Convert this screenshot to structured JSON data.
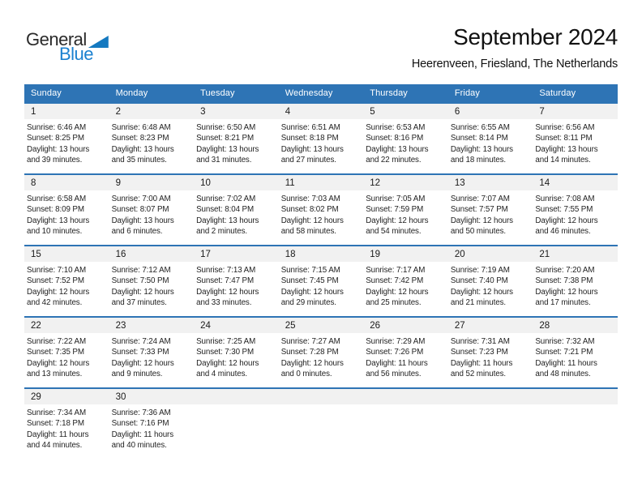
{
  "logo": {
    "part1": "General",
    "part2": "Blue"
  },
  "header": {
    "title": "September 2024",
    "subtitle": "Heerenveen, Friesland, The Netherlands"
  },
  "colors": {
    "accent_blue": "#2e74b5",
    "band_gray": "#f1f1f1",
    "logo_blue": "#1b81d0",
    "logo_triangle_blue": "#1479c0",
    "header_text": "#ffffff"
  },
  "calendar": {
    "weekdays": [
      "Sunday",
      "Monday",
      "Tuesday",
      "Wednesday",
      "Thursday",
      "Friday",
      "Saturday"
    ],
    "weeks": [
      [
        {
          "day": "1",
          "sunrise": "Sunrise: 6:46 AM",
          "sunset": "Sunset: 8:25 PM",
          "daylight_line1": "Daylight: 13 hours",
          "daylight_line2": "and 39 minutes."
        },
        {
          "day": "2",
          "sunrise": "Sunrise: 6:48 AM",
          "sunset": "Sunset: 8:23 PM",
          "daylight_line1": "Daylight: 13 hours",
          "daylight_line2": "and 35 minutes."
        },
        {
          "day": "3",
          "sunrise": "Sunrise: 6:50 AM",
          "sunset": "Sunset: 8:21 PM",
          "daylight_line1": "Daylight: 13 hours",
          "daylight_line2": "and 31 minutes."
        },
        {
          "day": "4",
          "sunrise": "Sunrise: 6:51 AM",
          "sunset": "Sunset: 8:18 PM",
          "daylight_line1": "Daylight: 13 hours",
          "daylight_line2": "and 27 minutes."
        },
        {
          "day": "5",
          "sunrise": "Sunrise: 6:53 AM",
          "sunset": "Sunset: 8:16 PM",
          "daylight_line1": "Daylight: 13 hours",
          "daylight_line2": "and 22 minutes."
        },
        {
          "day": "6",
          "sunrise": "Sunrise: 6:55 AM",
          "sunset": "Sunset: 8:14 PM",
          "daylight_line1": "Daylight: 13 hours",
          "daylight_line2": "and 18 minutes."
        },
        {
          "day": "7",
          "sunrise": "Sunrise: 6:56 AM",
          "sunset": "Sunset: 8:11 PM",
          "daylight_line1": "Daylight: 13 hours",
          "daylight_line2": "and 14 minutes."
        }
      ],
      [
        {
          "day": "8",
          "sunrise": "Sunrise: 6:58 AM",
          "sunset": "Sunset: 8:09 PM",
          "daylight_line1": "Daylight: 13 hours",
          "daylight_line2": "and 10 minutes."
        },
        {
          "day": "9",
          "sunrise": "Sunrise: 7:00 AM",
          "sunset": "Sunset: 8:07 PM",
          "daylight_line1": "Daylight: 13 hours",
          "daylight_line2": "and 6 minutes."
        },
        {
          "day": "10",
          "sunrise": "Sunrise: 7:02 AM",
          "sunset": "Sunset: 8:04 PM",
          "daylight_line1": "Daylight: 13 hours",
          "daylight_line2": "and 2 minutes."
        },
        {
          "day": "11",
          "sunrise": "Sunrise: 7:03 AM",
          "sunset": "Sunset: 8:02 PM",
          "daylight_line1": "Daylight: 12 hours",
          "daylight_line2": "and 58 minutes."
        },
        {
          "day": "12",
          "sunrise": "Sunrise: 7:05 AM",
          "sunset": "Sunset: 7:59 PM",
          "daylight_line1": "Daylight: 12 hours",
          "daylight_line2": "and 54 minutes."
        },
        {
          "day": "13",
          "sunrise": "Sunrise: 7:07 AM",
          "sunset": "Sunset: 7:57 PM",
          "daylight_line1": "Daylight: 12 hours",
          "daylight_line2": "and 50 minutes."
        },
        {
          "day": "14",
          "sunrise": "Sunrise: 7:08 AM",
          "sunset": "Sunset: 7:55 PM",
          "daylight_line1": "Daylight: 12 hours",
          "daylight_line2": "and 46 minutes."
        }
      ],
      [
        {
          "day": "15",
          "sunrise": "Sunrise: 7:10 AM",
          "sunset": "Sunset: 7:52 PM",
          "daylight_line1": "Daylight: 12 hours",
          "daylight_line2": "and 42 minutes."
        },
        {
          "day": "16",
          "sunrise": "Sunrise: 7:12 AM",
          "sunset": "Sunset: 7:50 PM",
          "daylight_line1": "Daylight: 12 hours",
          "daylight_line2": "and 37 minutes."
        },
        {
          "day": "17",
          "sunrise": "Sunrise: 7:13 AM",
          "sunset": "Sunset: 7:47 PM",
          "daylight_line1": "Daylight: 12 hours",
          "daylight_line2": "and 33 minutes."
        },
        {
          "day": "18",
          "sunrise": "Sunrise: 7:15 AM",
          "sunset": "Sunset: 7:45 PM",
          "daylight_line1": "Daylight: 12 hours",
          "daylight_line2": "and 29 minutes."
        },
        {
          "day": "19",
          "sunrise": "Sunrise: 7:17 AM",
          "sunset": "Sunset: 7:42 PM",
          "daylight_line1": "Daylight: 12 hours",
          "daylight_line2": "and 25 minutes."
        },
        {
          "day": "20",
          "sunrise": "Sunrise: 7:19 AM",
          "sunset": "Sunset: 7:40 PM",
          "daylight_line1": "Daylight: 12 hours",
          "daylight_line2": "and 21 minutes."
        },
        {
          "day": "21",
          "sunrise": "Sunrise: 7:20 AM",
          "sunset": "Sunset: 7:38 PM",
          "daylight_line1": "Daylight: 12 hours",
          "daylight_line2": "and 17 minutes."
        }
      ],
      [
        {
          "day": "22",
          "sunrise": "Sunrise: 7:22 AM",
          "sunset": "Sunset: 7:35 PM",
          "daylight_line1": "Daylight: 12 hours",
          "daylight_line2": "and 13 minutes."
        },
        {
          "day": "23",
          "sunrise": "Sunrise: 7:24 AM",
          "sunset": "Sunset: 7:33 PM",
          "daylight_line1": "Daylight: 12 hours",
          "daylight_line2": "and 9 minutes."
        },
        {
          "day": "24",
          "sunrise": "Sunrise: 7:25 AM",
          "sunset": "Sunset: 7:30 PM",
          "daylight_line1": "Daylight: 12 hours",
          "daylight_line2": "and 4 minutes."
        },
        {
          "day": "25",
          "sunrise": "Sunrise: 7:27 AM",
          "sunset": "Sunset: 7:28 PM",
          "daylight_line1": "Daylight: 12 hours",
          "daylight_line2": "and 0 minutes."
        },
        {
          "day": "26",
          "sunrise": "Sunrise: 7:29 AM",
          "sunset": "Sunset: 7:26 PM",
          "daylight_line1": "Daylight: 11 hours",
          "daylight_line2": "and 56 minutes."
        },
        {
          "day": "27",
          "sunrise": "Sunrise: 7:31 AM",
          "sunset": "Sunset: 7:23 PM",
          "daylight_line1": "Daylight: 11 hours",
          "daylight_line2": "and 52 minutes."
        },
        {
          "day": "28",
          "sunrise": "Sunrise: 7:32 AM",
          "sunset": "Sunset: 7:21 PM",
          "daylight_line1": "Daylight: 11 hours",
          "daylight_line2": "and 48 minutes."
        }
      ],
      [
        {
          "day": "29",
          "sunrise": "Sunrise: 7:34 AM",
          "sunset": "Sunset: 7:18 PM",
          "daylight_line1": "Daylight: 11 hours",
          "daylight_line2": "and 44 minutes."
        },
        {
          "day": "30",
          "sunrise": "Sunrise: 7:36 AM",
          "sunset": "Sunset: 7:16 PM",
          "daylight_line1": "Daylight: 11 hours",
          "daylight_line2": "and 40 minutes."
        },
        null,
        null,
        null,
        null,
        null
      ]
    ]
  }
}
